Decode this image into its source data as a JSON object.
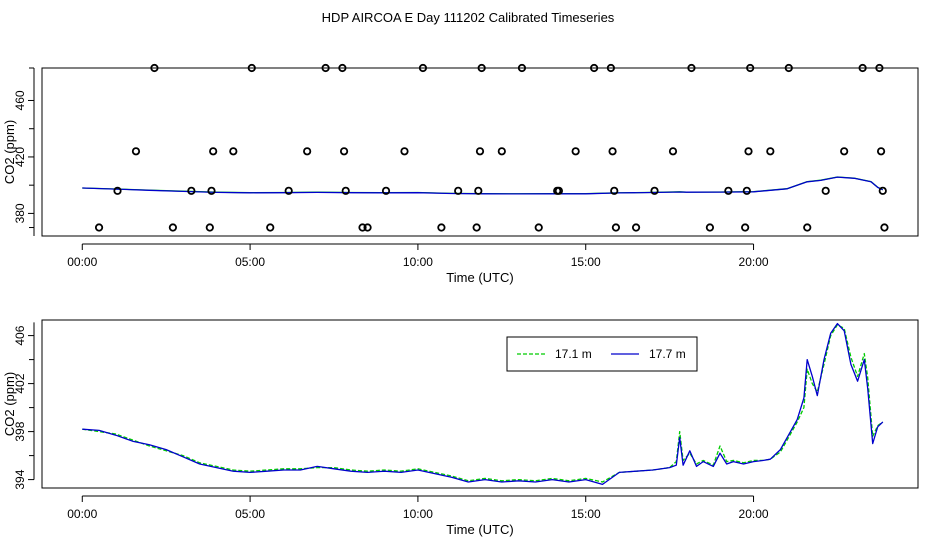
{
  "figure": {
    "title": "HDP AIRCOA E  Day 111202  Calibrated Timeseries"
  },
  "chart_data": [
    {
      "type": "scatter",
      "xlabel": "Time (UTC)",
      "ylabel": "CO2 (ppm)",
      "xlim": [
        -1.2,
        24.9
      ],
      "ylim": [
        364,
        483
      ],
      "x_ticks": [
        0,
        5,
        10,
        15,
        20
      ],
      "x_tick_labels": [
        "00:00",
        "05:00",
        "10:00",
        "15:00",
        "20:00"
      ],
      "y_ticks": [
        380,
        420,
        460
      ],
      "y_tick_labels": [
        "380",
        "420",
        "460"
      ],
      "grid": false,
      "legend": null,
      "calibration_points": {
        "x": [
          0.5,
          1.05,
          1.6,
          2.15,
          2.7,
          3.25,
          3.8,
          3.85,
          3.9,
          4.5,
          5.05,
          5.6,
          6.15,
          6.7,
          7.25,
          7.75,
          7.8,
          7.85,
          8.35,
          8.5,
          9.05,
          9.6,
          10.15,
          10.7,
          11.2,
          11.75,
          11.8,
          11.85,
          11.9,
          12.5,
          13.1,
          13.6,
          14.15,
          14.2,
          14.7,
          15.25,
          15.75,
          15.8,
          15.85,
          15.9,
          16.5,
          17.05,
          17.6,
          18.15,
          18.7,
          19.25,
          19.75,
          19.8,
          19.85,
          19.9,
          20.5,
          21.05,
          21.6,
          22.15,
          22.7,
          23.25,
          23.75,
          23.8,
          23.85,
          23.9
        ],
        "y": [
          370,
          396,
          424,
          483,
          370,
          396,
          370,
          396,
          424,
          424,
          483,
          370,
          396,
          424,
          483,
          483,
          424,
          396,
          370,
          370,
          396,
          424,
          483,
          370,
          396,
          370,
          396,
          424,
          483,
          424,
          483,
          370,
          396,
          396,
          424,
          483,
          483,
          424,
          396,
          370,
          370,
          396,
          424,
          483,
          370,
          396,
          370,
          396,
          424,
          483,
          424,
          483,
          370,
          396,
          424,
          483,
          483,
          424,
          396,
          370
        ]
      },
      "series": [
        {
          "color": "#00cc00",
          "x": [
            0,
            1,
            2,
            3,
            4,
            5,
            6,
            7,
            8,
            9,
            10,
            11,
            12,
            13,
            14,
            15,
            16,
            17,
            17.8,
            18,
            19,
            20,
            21,
            21.6,
            22,
            22.5,
            23,
            23.5,
            23.7,
            23.85
          ],
          "y": [
            398,
            397.3,
            396.5,
            395.7,
            395,
            394.7,
            394.8,
            395,
            394.8,
            394.7,
            394.8,
            394.2,
            394,
            393.9,
            394,
            394,
            394.6,
            394.9,
            395.3,
            395.1,
            395.2,
            395.4,
            397.5,
            402.5,
            403.5,
            405.8,
            405,
            402.5,
            398.5,
            396.8
          ]
        },
        {
          "color": "#0000cc",
          "x": [
            0,
            1,
            2,
            3,
            4,
            5,
            6,
            7,
            8,
            9,
            10,
            11,
            12,
            13,
            14,
            15,
            16,
            17,
            17.8,
            18,
            19,
            20,
            21,
            21.6,
            22,
            22.5,
            23,
            23.5,
            23.7,
            23.85
          ],
          "y": [
            398,
            397.2,
            396.4,
            395.6,
            394.9,
            394.6,
            394.7,
            394.9,
            394.7,
            394.6,
            394.7,
            394.1,
            393.9,
            393.8,
            393.9,
            393.9,
            394.5,
            394.8,
            395.2,
            395,
            395.1,
            395.3,
            397.4,
            402.4,
            403.4,
            405.7,
            404.9,
            402.4,
            398.4,
            396.7
          ]
        }
      ]
    },
    {
      "type": "line",
      "xlabel": "Time (UTC)",
      "ylabel": "CO2 (ppm)",
      "xlim": [
        -1.2,
        24.9
      ],
      "ylim": [
        393.3,
        407.3
      ],
      "x_ticks": [
        0,
        5,
        10,
        15,
        20
      ],
      "x_tick_labels": [
        "00:00",
        "05:00",
        "10:00",
        "15:00",
        "20:00"
      ],
      "y_ticks": [
        394,
        398,
        402,
        406
      ],
      "y_tick_labels": [
        "394",
        "398",
        "402",
        "406"
      ],
      "grid": false,
      "legend": "top-right",
      "series": [
        {
          "name": "17.1 m",
          "color": "#00cc00",
          "dash": "4,2",
          "x": [
            0,
            0.5,
            1,
            1.5,
            2,
            2.5,
            3,
            3.5,
            4,
            4.5,
            5,
            5.5,
            6,
            6.5,
            7,
            7.5,
            8,
            8.5,
            9,
            9.5,
            10,
            10.5,
            11,
            11.5,
            12,
            12.5,
            13,
            13.5,
            14,
            14.5,
            15,
            15.5,
            16,
            16.5,
            17,
            17.5,
            17.7,
            17.8,
            17.9,
            18.1,
            18.3,
            18.5,
            18.8,
            19,
            19.2,
            19.4,
            19.7,
            20,
            20.3,
            20.5,
            20.8,
            21.1,
            21.3,
            21.5,
            21.6,
            21.75,
            21.9,
            22.1,
            22.3,
            22.5,
            22.7,
            22.9,
            23.1,
            23.3,
            23.4,
            23.55,
            23.7,
            23.85
          ],
          "y": [
            398.2,
            398,
            397.8,
            397.3,
            396.8,
            396.4,
            396,
            395.4,
            395.1,
            394.8,
            394.7,
            394.8,
            394.9,
            394.9,
            395,
            395,
            394.8,
            394.7,
            394.8,
            394.7,
            394.9,
            394.6,
            394.3,
            393.9,
            394.1,
            393.9,
            394,
            393.9,
            394.1,
            393.9,
            394.1,
            393.8,
            394.6,
            394.7,
            394.8,
            395,
            395.5,
            398,
            395.6,
            396.2,
            395.3,
            395.6,
            395.2,
            396.8,
            395.5,
            395.6,
            395.4,
            395.6,
            395.6,
            395.7,
            396.3,
            397.8,
            398.8,
            400,
            403.2,
            402,
            401.3,
            403.6,
            406,
            406.9,
            406.6,
            404.2,
            402.6,
            404.5,
            402.5,
            397.6,
            398.5,
            398.8
          ]
        },
        {
          "name": "17.7 m",
          "color": "#0000cc",
          "dash": "",
          "x": [
            0,
            0.5,
            1,
            1.5,
            2,
            2.5,
            3,
            3.5,
            4,
            4.5,
            5,
            5.5,
            6,
            6.5,
            7,
            7.5,
            8,
            8.5,
            9,
            9.5,
            10,
            10.5,
            11,
            11.5,
            12,
            12.5,
            13,
            13.5,
            14,
            14.5,
            15,
            15.5,
            16,
            16.5,
            17,
            17.5,
            17.7,
            17.8,
            17.9,
            18.1,
            18.3,
            18.5,
            18.8,
            19,
            19.2,
            19.4,
            19.7,
            20,
            20.3,
            20.5,
            20.8,
            21.1,
            21.3,
            21.5,
            21.6,
            21.75,
            21.9,
            22.1,
            22.3,
            22.5,
            22.7,
            22.9,
            23.1,
            23.3,
            23.4,
            23.55,
            23.7,
            23.85
          ],
          "y": [
            398.2,
            398.1,
            397.7,
            397.2,
            396.9,
            396.5,
            395.9,
            395.3,
            395,
            394.7,
            394.6,
            394.7,
            394.8,
            394.8,
            395.1,
            394.9,
            394.7,
            394.6,
            394.7,
            394.6,
            394.8,
            394.5,
            394.2,
            393.8,
            394,
            393.8,
            393.9,
            393.8,
            394,
            393.8,
            394,
            393.6,
            394.6,
            394.7,
            394.8,
            395,
            395.2,
            397.5,
            395.2,
            396.4,
            395.1,
            395.5,
            395.1,
            396.2,
            395.3,
            395.5,
            395.3,
            395.5,
            395.6,
            395.7,
            396.5,
            398,
            399,
            400.8,
            404,
            402.6,
            401,
            404,
            406.2,
            407,
            406.4,
            403.6,
            402.2,
            404,
            401.6,
            397,
            398.4,
            398.8
          ]
        }
      ]
    }
  ]
}
